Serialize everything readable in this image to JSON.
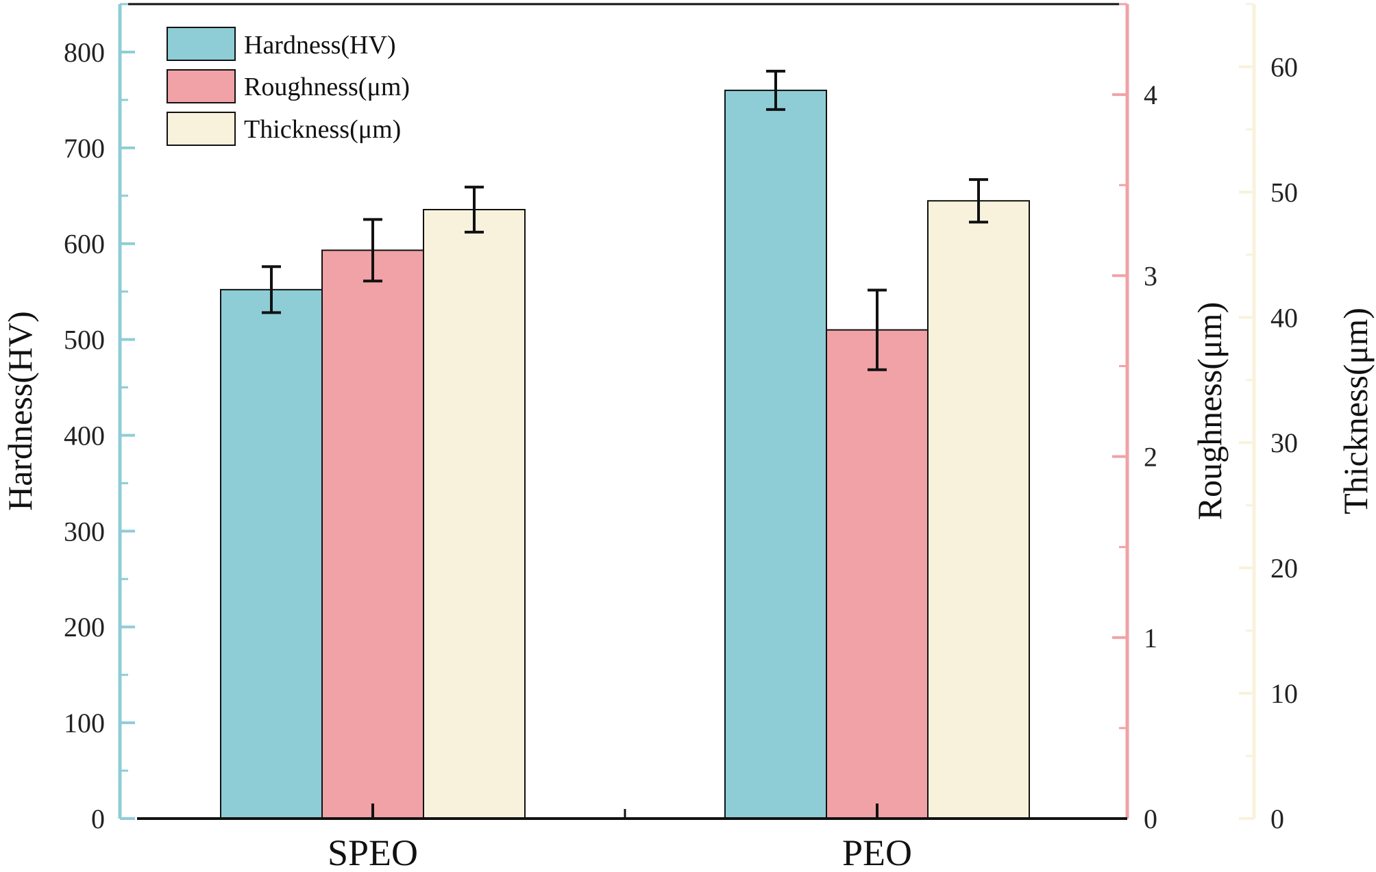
{
  "chart_data": {
    "type": "bar",
    "categories": [
      "SPEO",
      "PEO"
    ],
    "series": [
      {
        "name": "Hardness(HV)",
        "axis": "left",
        "values": [
          552,
          760
        ],
        "errors": [
          24,
          20
        ],
        "color": "#8ecdd6"
      },
      {
        "name": "Roughness(μm)",
        "axis": "right1",
        "values": [
          3.14,
          2.7
        ],
        "errors": [
          0.17,
          0.22
        ],
        "color": "#f0a2a7"
      },
      {
        "name": "Thickness(μm)",
        "axis": "right2",
        "values": [
          48.6,
          49.3
        ],
        "errors": [
          1.8,
          1.7
        ],
        "color": "#f8f2dc"
      }
    ],
    "axes": {
      "left": {
        "label": "Hardness(HV)",
        "range": [
          0,
          850
        ],
        "ticks": [
          "0",
          "100",
          "200",
          "300",
          "400",
          "500",
          "600",
          "700",
          "800"
        ],
        "tick_values": [
          0,
          100,
          200,
          300,
          400,
          500,
          600,
          700,
          800
        ],
        "color": "#8ecdd6"
      },
      "right1": {
        "label": "Roughness(μm)",
        "range": [
          0,
          4.5
        ],
        "ticks": [
          "0",
          "1",
          "2",
          "3",
          "4"
        ],
        "tick_values": [
          0,
          1,
          2,
          3,
          4
        ],
        "color": "#f0a2a7"
      },
      "right2": {
        "label": "Thickness(μm)",
        "range": [
          0,
          65
        ],
        "ticks": [
          "0",
          "10",
          "20",
          "30",
          "40",
          "50",
          "60"
        ],
        "tick_values": [
          0,
          10,
          20,
          30,
          40,
          50,
          60
        ],
        "color": "#f8f2dc"
      }
    },
    "legend": {
      "position": "top-left"
    },
    "grid": false
  }
}
